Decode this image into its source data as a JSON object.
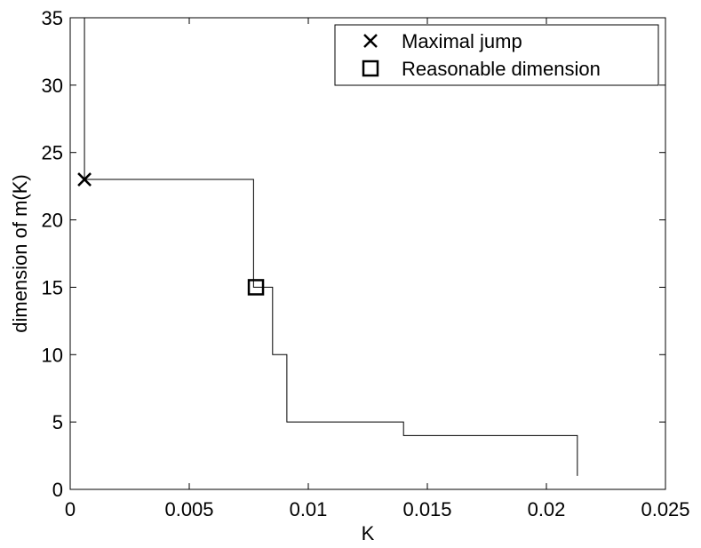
{
  "chart_data": {
    "type": "line",
    "title": "",
    "xlabel": "K",
    "ylabel": "dimension of m(K)",
    "xlim": [
      0,
      0.025
    ],
    "ylim": [
      0,
      35
    ],
    "grid": false,
    "legend_position": "top-right",
    "x_ticks": [
      0,
      0.005,
      0.01,
      0.015,
      0.02,
      0.025
    ],
    "x_tick_labels": [
      "0",
      "0.005",
      "0.01",
      "0.015",
      "0.02",
      "0.025"
    ],
    "y_ticks": [
      0,
      5,
      10,
      15,
      20,
      25,
      30,
      35
    ],
    "y_tick_labels": [
      "0",
      "5",
      "10",
      "15",
      "20",
      "25",
      "30",
      "35"
    ],
    "series": [
      {
        "style": "step",
        "color": "#000000",
        "x": [
          0.0006,
          0.0006,
          0.0077,
          0.0077,
          0.0085,
          0.0085,
          0.0091,
          0.0091,
          0.014,
          0.014,
          0.0213,
          0.0213
        ],
        "y": [
          35,
          23,
          23,
          15,
          15,
          10,
          10,
          5,
          5,
          4,
          4,
          1
        ]
      }
    ],
    "markers": [
      {
        "label": "Maximal jump",
        "symbol": "x",
        "x": 0.0006,
        "y": 23
      },
      {
        "label": "Reasonable dimension",
        "symbol": "square",
        "x": 0.0078,
        "y": 15
      }
    ]
  }
}
